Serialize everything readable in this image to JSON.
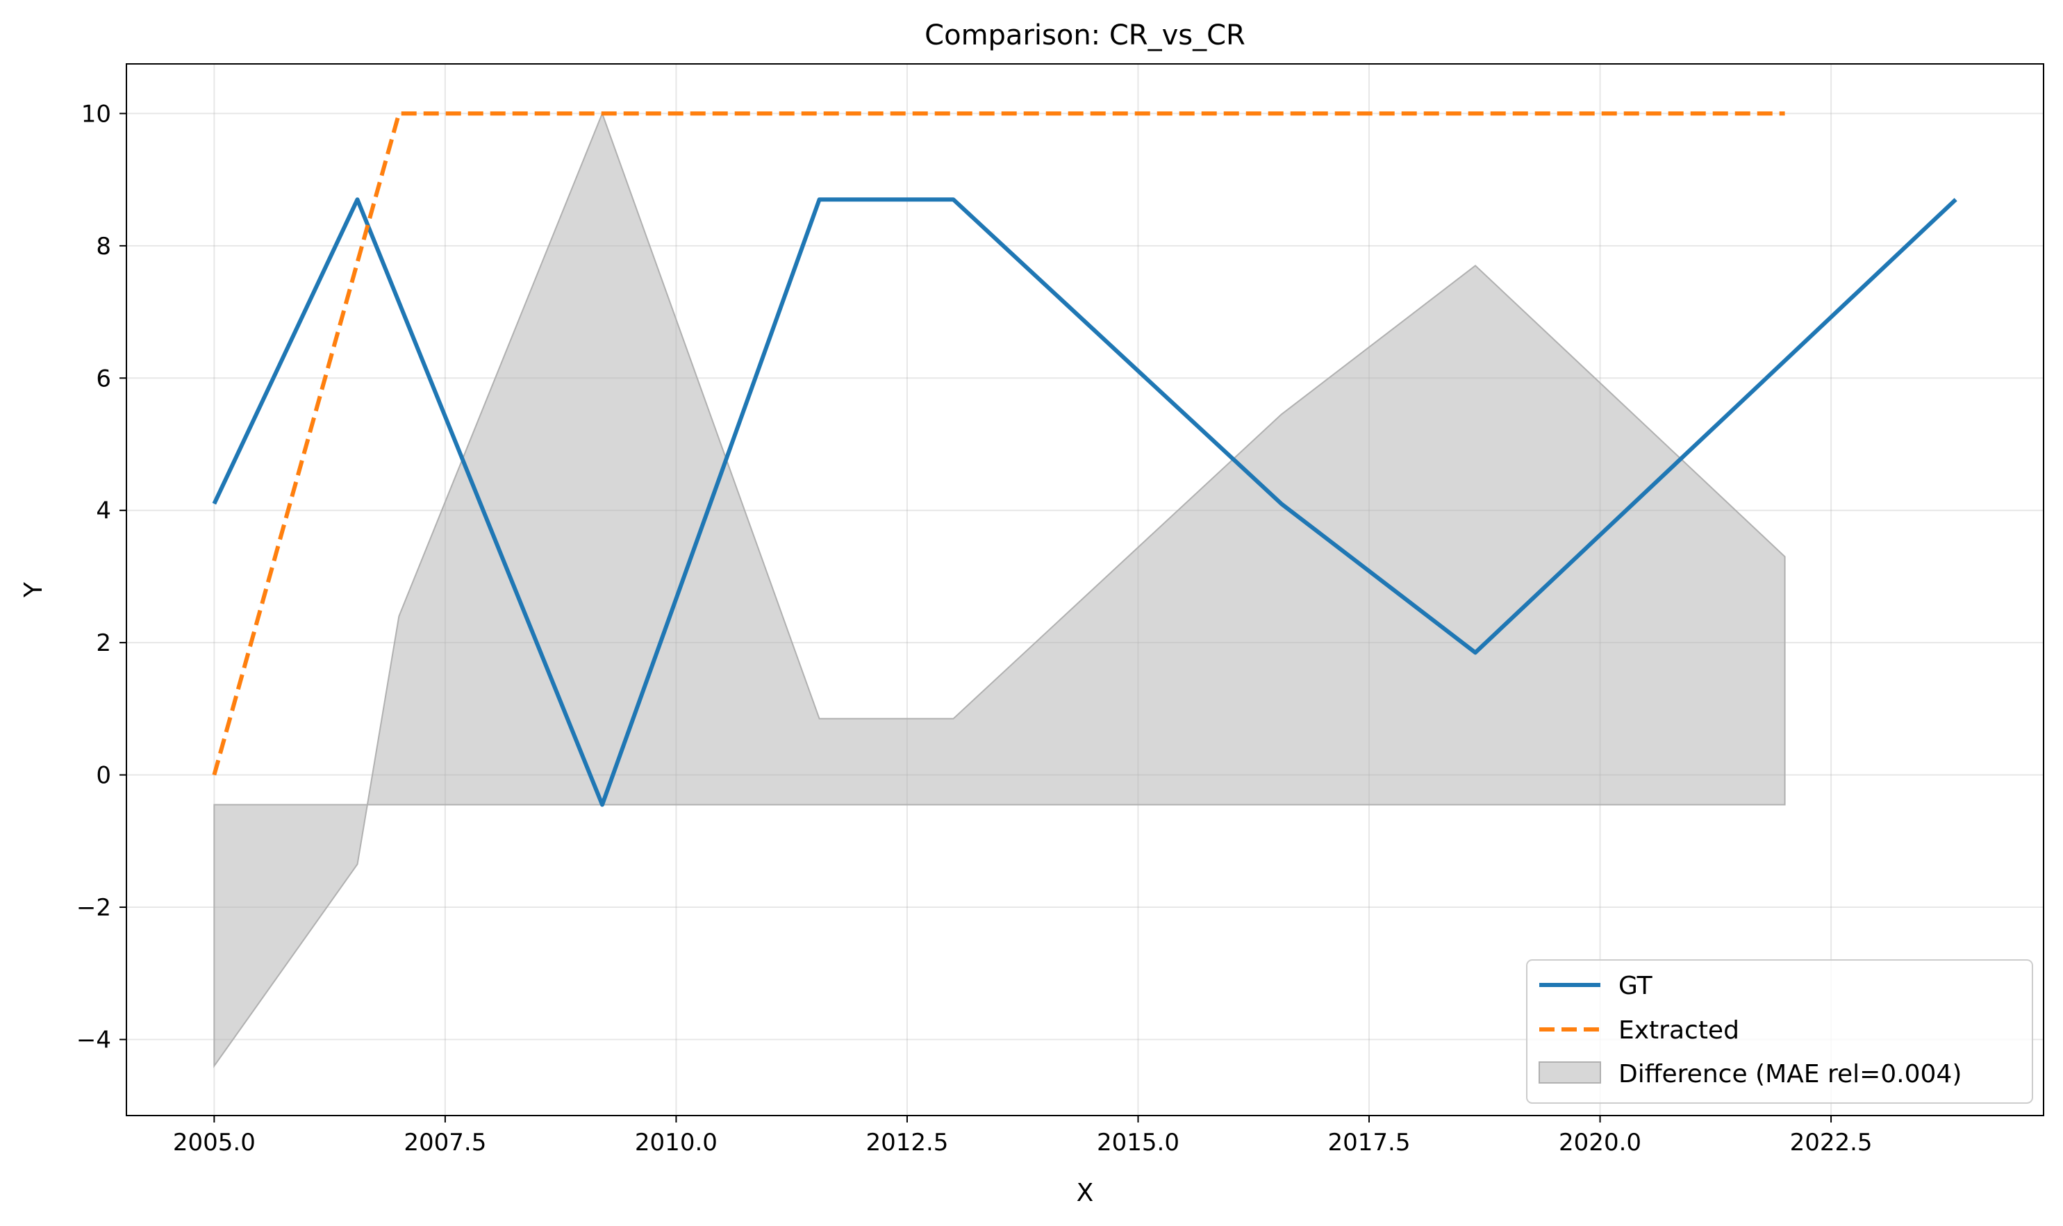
{
  "chart_data": {
    "type": "line",
    "title": "Comparison: CR_vs_CR",
    "xlabel": "X",
    "ylabel": "Y",
    "xlim": [
      2004.05,
      2024.8
    ],
    "ylim": [
      -5.15,
      10.75
    ],
    "xticks": [
      2005.0,
      2007.5,
      2010.0,
      2012.5,
      2015.0,
      2017.5,
      2020.0,
      2022.5
    ],
    "xtick_labels": [
      "2005.0",
      "2007.5",
      "2010.0",
      "2012.5",
      "2015.0",
      "2017.5",
      "2020.0",
      "2022.5"
    ],
    "yticks": [
      -4,
      -2,
      0,
      2,
      4,
      6,
      8,
      10
    ],
    "ytick_labels": [
      "−4",
      "−2",
      "0",
      "2",
      "4",
      "6",
      "8",
      "10"
    ],
    "grid": true,
    "legend_position": "bottom-right",
    "series": [
      {
        "name": "GT",
        "style": "solid",
        "color": "#1f77b4",
        "x": [
          2005.0,
          2006.55,
          2009.2,
          2011.55,
          2013.0,
          2016.55,
          2018.65,
          2023.85
        ],
        "y": [
          4.1,
          8.7,
          -0.45,
          8.7,
          8.7,
          4.1,
          1.85,
          8.7
        ]
      },
      {
        "name": "Extracted",
        "style": "dashed",
        "color": "#ff7f0e",
        "x": [
          2005.0,
          2007.0,
          2022.0
        ],
        "y": [
          0.0,
          10.0,
          10.0
        ]
      }
    ],
    "difference": {
      "name": "Difference (MAE rel=0.004)",
      "color": "#b0b0b0",
      "baseline": -0.45,
      "x": [
        2005.0,
        2006.55,
        2007.0,
        2009.2,
        2011.55,
        2013.0,
        2016.55,
        2018.65,
        2022.0
      ],
      "y": [
        -4.4,
        -1.35,
        2.4,
        10.0,
        0.85,
        0.85,
        5.45,
        7.7,
        3.3
      ]
    }
  }
}
